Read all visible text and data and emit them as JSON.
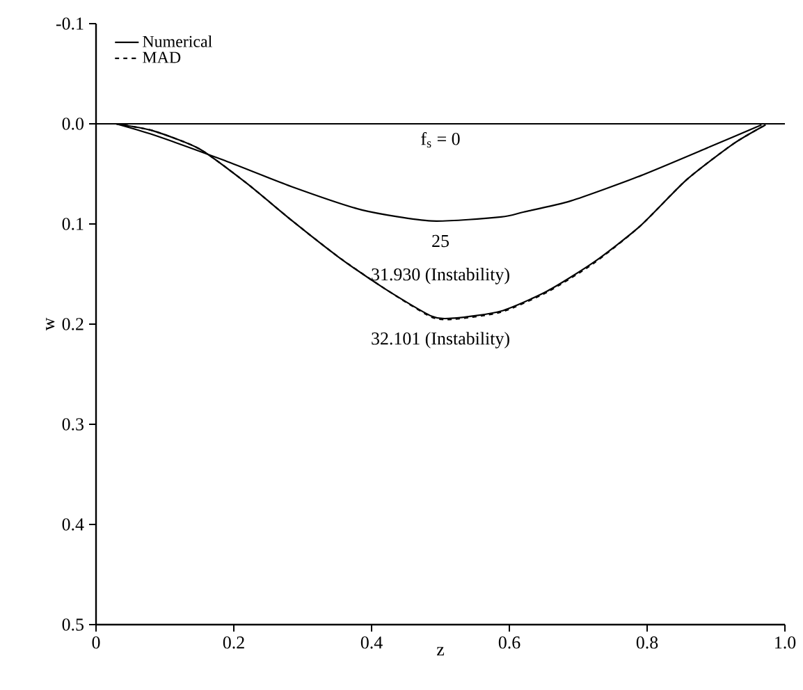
{
  "chart_data": {
    "type": "line",
    "xlabel": "z",
    "ylabel": "w",
    "xlim": [
      0,
      1
    ],
    "ylim": [
      0.5,
      -0.1
    ],
    "xticks": [
      0,
      0.2,
      0.4,
      0.6,
      0.8,
      {
        "value": 1,
        "label": "1.0"
      }
    ],
    "yticks": [
      -0.1,
      {
        "value": 0,
        "label": "0.0"
      },
      0.1,
      0.2,
      0.3,
      0.4,
      0.5
    ],
    "legend": "top left",
    "grid": false,
    "series": [
      {
        "name": "Numerical",
        "color": "#000000",
        "line_style": "solid",
        "x": [
          0,
          1
        ],
        "values": [
          0,
          0
        ]
      },
      {
        "color": "#000000",
        "line_style": "solid",
        "x": [
          0.029,
          0.083,
          0.184,
          0.285,
          0.386,
          0.487,
          0.588,
          0.621,
          0.689,
          0.79,
          0.891,
          0.966
        ],
        "values": [
          0,
          0.011,
          0.036,
          0.063,
          0.086,
          0.097,
          0.093,
          0.088,
          0.077,
          0.052,
          0.023,
          0.001
        ]
      },
      {
        "color": "#000000",
        "line_style": "solid",
        "x": [
          0.029,
          0.083,
          0.15,
          0.218,
          0.285,
          0.352,
          0.42,
          0.487,
          0.52,
          0.588,
          0.655,
          0.723,
          0.79,
          0.857,
          0.925,
          0.972
        ],
        "values": [
          0,
          0.007,
          0.025,
          0.059,
          0.097,
          0.133,
          0.165,
          0.192,
          0.194,
          0.187,
          0.167,
          0.138,
          0.102,
          0.056,
          0.02,
          0.001
        ]
      },
      {
        "name": "MAD",
        "color": "#000000",
        "line_style": "dashed",
        "x": [
          0.029,
          0.083,
          0.15,
          0.218,
          0.285,
          0.352,
          0.42,
          0.487,
          0.52,
          0.588,
          0.655,
          0.723,
          0.79,
          0.857,
          0.925,
          0.972
        ],
        "values": [
          0,
          0.007,
          0.025,
          0.059,
          0.097,
          0.133,
          0.165,
          0.193,
          0.195,
          0.188,
          0.168,
          0.139,
          0.102,
          0.056,
          0.02,
          0.001
        ]
      }
    ],
    "annotations": [
      "f$_{s}$ = 0",
      "25",
      "31.930 (Instability)",
      "32.101 (Instability)"
    ]
  }
}
